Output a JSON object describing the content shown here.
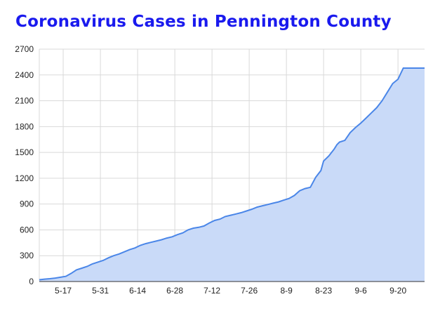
{
  "chart_data": {
    "type": "area",
    "title": "Coronavirus Cases in Pennington County",
    "xlabel": "",
    "ylabel": "",
    "x_tick_labels": [
      "5-17",
      "5-31",
      "6-14",
      "6-28",
      "7-12",
      "7-26",
      "8-9",
      "8-23",
      "9-6",
      "9-20"
    ],
    "y_tick_labels": [
      "0",
      "300",
      "600",
      "900",
      "1200",
      "1500",
      "1800",
      "2100",
      "2400",
      "2700"
    ],
    "ylim": [
      0,
      2700
    ],
    "grid": true,
    "legend": "none",
    "series": [
      {
        "color": "#4a86e8",
        "fill": "#c9daf8",
        "x": [
          "5-8",
          "5-10",
          "5-12",
          "5-14",
          "5-16",
          "5-18",
          "5-20",
          "5-22",
          "5-24",
          "5-26",
          "5-28",
          "5-30",
          "6-1",
          "6-3",
          "6-5",
          "6-7",
          "6-9",
          "6-11",
          "6-13",
          "6-15",
          "6-17",
          "6-19",
          "6-21",
          "6-23",
          "6-25",
          "6-27",
          "6-29",
          "7-1",
          "7-3",
          "7-5",
          "7-7",
          "7-9",
          "7-11",
          "7-13",
          "7-15",
          "7-17",
          "7-19",
          "7-21",
          "7-23",
          "7-25",
          "7-27",
          "7-29",
          "7-31",
          "8-2",
          "8-4",
          "8-6",
          "8-8",
          "8-10",
          "8-12",
          "8-14",
          "8-16",
          "8-18",
          "8-20",
          "8-22",
          "8-23",
          "8-25",
          "8-27",
          "8-28",
          "8-29",
          "8-31",
          "9-2",
          "9-4",
          "9-6",
          "9-8",
          "9-10",
          "9-12",
          "9-14",
          "9-16",
          "9-18",
          "9-20",
          "9-22",
          "9-24",
          "9-26",
          "9-28",
          "9-30"
        ],
        "values": [
          20,
          28,
          33,
          40,
          50,
          60,
          95,
          135,
          155,
          175,
          205,
          225,
          245,
          275,
          300,
          320,
          345,
          370,
          390,
          420,
          440,
          455,
          470,
          485,
          505,
          520,
          545,
          565,
          600,
          620,
          630,
          645,
          680,
          710,
          725,
          755,
          770,
          785,
          800,
          820,
          840,
          865,
          880,
          895,
          910,
          925,
          945,
          965,
          1000,
          1055,
          1080,
          1095,
          1210,
          1290,
          1400,
          1460,
          1540,
          1590,
          1620,
          1640,
          1730,
          1790,
          1840,
          1900,
          1960,
          2020,
          2100,
          2200,
          2300,
          2350,
          2480,
          2480,
          2480,
          2480,
          2480
        ]
      }
    ]
  }
}
